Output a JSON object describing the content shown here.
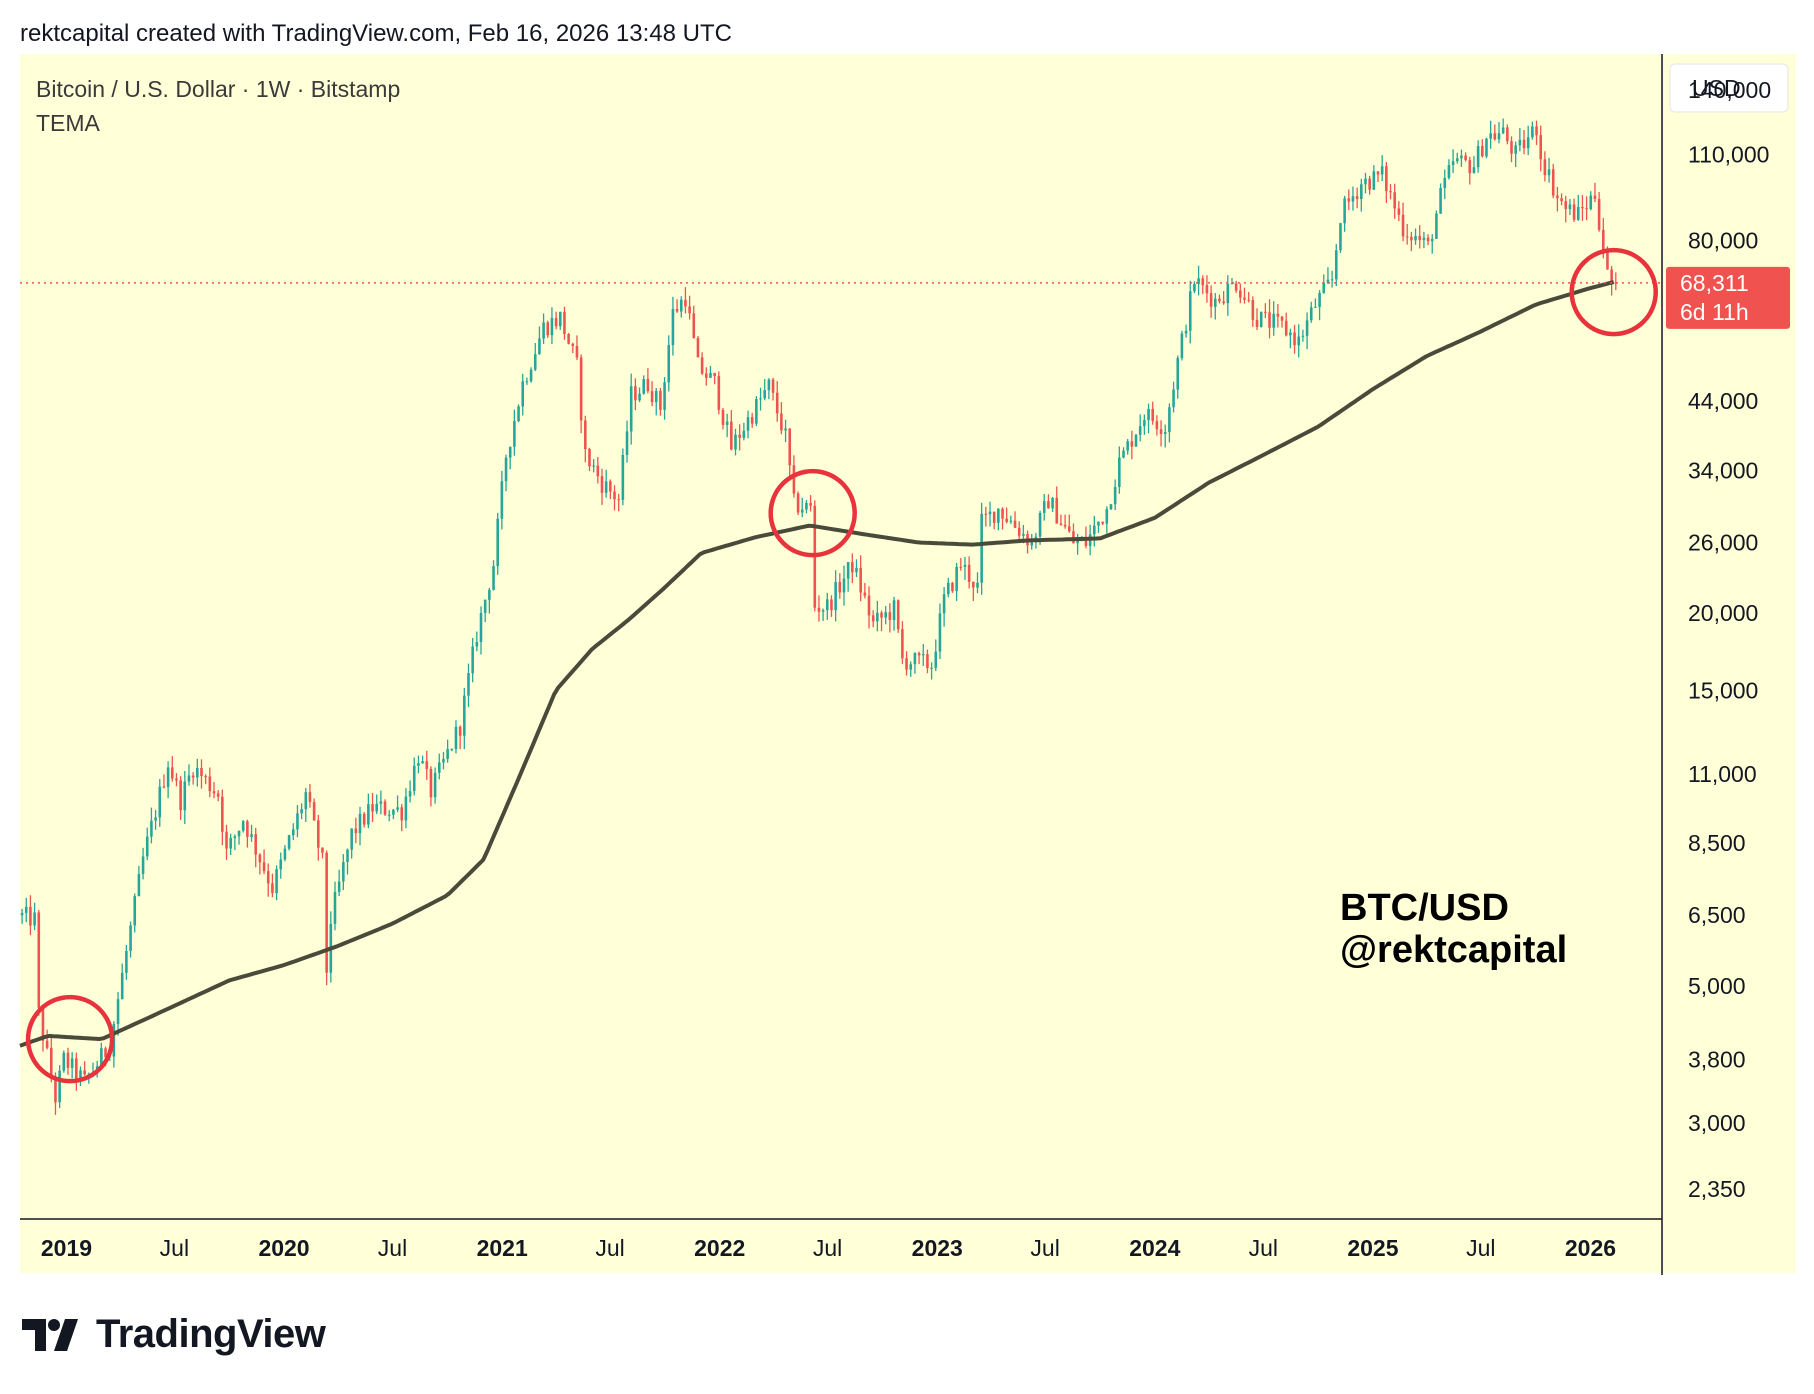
{
  "header": {
    "text": "rektcapital created with TradingView.com, Feb 16, 2026 13:48 UTC"
  },
  "legend": {
    "symbol": "Bitcoin / U.S. Dollar · 1W · Bitstamp",
    "indicator": "TEMA"
  },
  "currency": "USD",
  "price_tag": {
    "price": "68,311",
    "countdown": "6d 11h"
  },
  "watermark": {
    "line1": "BTC/USD",
    "line2": "@rektcapital"
  },
  "brand": {
    "name": "TradingView"
  },
  "colors": {
    "background": "#ffffd8",
    "up": "#26a69a",
    "down": "#ef5350",
    "tema": "#4a4a3a",
    "circle": "#e8323c",
    "price_line": "#ef5350",
    "price_tag": "#f0524f"
  },
  "chart_data": {
    "type": "candlestick",
    "timeframe": "1W",
    "y_scale": "log",
    "ylim": [
      2100,
      160000
    ],
    "y_ticks": [
      {
        "value": 140000,
        "label": "140,000"
      },
      {
        "value": 110000,
        "label": "110,000"
      },
      {
        "value": 80000,
        "label": "80,000"
      },
      {
        "value": 44000,
        "label": "44,000"
      },
      {
        "value": 34000,
        "label": "34,000"
      },
      {
        "value": 26000,
        "label": "26,000"
      },
      {
        "value": 20000,
        "label": "20,000"
      },
      {
        "value": 15000,
        "label": "15,000"
      },
      {
        "value": 11000,
        "label": "11,000"
      },
      {
        "value": 8500,
        "label": "8,500"
      },
      {
        "value": 6500,
        "label": "6,500"
      },
      {
        "value": 5000,
        "label": "5,000"
      },
      {
        "value": 3800,
        "label": "3,800"
      },
      {
        "value": 3000,
        "label": "3,000"
      },
      {
        "value": 2350,
        "label": "2,350"
      }
    ],
    "xlim": [
      "2018-10-15",
      "2026-05-01"
    ],
    "x_ticks": [
      {
        "date": "2019-01-01",
        "label": "2019",
        "bold": true
      },
      {
        "date": "2019-07-01",
        "label": "Jul",
        "bold": false
      },
      {
        "date": "2020-01-01",
        "label": "2020",
        "bold": true
      },
      {
        "date": "2020-07-01",
        "label": "Jul",
        "bold": false
      },
      {
        "date": "2021-01-01",
        "label": "2021",
        "bold": true
      },
      {
        "date": "2021-07-01",
        "label": "Jul",
        "bold": false
      },
      {
        "date": "2022-01-01",
        "label": "2022",
        "bold": true
      },
      {
        "date": "2022-07-01",
        "label": "Jul",
        "bold": false
      },
      {
        "date": "2023-01-01",
        "label": "2023",
        "bold": true
      },
      {
        "date": "2023-07-01",
        "label": "Jul",
        "bold": false
      },
      {
        "date": "2024-01-01",
        "label": "2024",
        "bold": true
      },
      {
        "date": "2024-07-01",
        "label": "Jul",
        "bold": false
      },
      {
        "date": "2025-01-01",
        "label": "2025",
        "bold": true
      },
      {
        "date": "2025-07-01",
        "label": "Jul",
        "bold": false
      },
      {
        "date": "2026-01-01",
        "label": "2026",
        "bold": true
      }
    ],
    "current_price": 68311,
    "price_anchors": [
      [
        "2018-10-15",
        6500
      ],
      [
        "2018-11-12",
        6400
      ],
      [
        "2018-11-19",
        4500
      ],
      [
        "2018-12-17",
        3300
      ],
      [
        "2018-12-31",
        3800
      ],
      [
        "2019-02-04",
        3500
      ],
      [
        "2019-03-18",
        4000
      ],
      [
        "2019-04-08",
        5200
      ],
      [
        "2019-05-13",
        8000
      ],
      [
        "2019-06-24",
        11500
      ],
      [
        "2019-07-15",
        10000
      ],
      [
        "2019-08-05",
        11300
      ],
      [
        "2019-09-16",
        10200
      ],
      [
        "2019-09-30",
        8200
      ],
      [
        "2019-10-28",
        9300
      ],
      [
        "2019-12-16",
        7200
      ],
      [
        "2020-02-10",
        10200
      ],
      [
        "2020-03-09",
        7900
      ],
      [
        "2020-03-16",
        5300
      ],
      [
        "2020-03-23",
        6400
      ],
      [
        "2020-04-27",
        8800
      ],
      [
        "2020-06-01",
        9700
      ],
      [
        "2020-07-20",
        9600
      ],
      [
        "2020-08-17",
        11800
      ],
      [
        "2020-09-07",
        10300
      ],
      [
        "2020-10-26",
        13200
      ],
      [
        "2020-11-23",
        18500
      ],
      [
        "2020-12-21",
        24000
      ],
      [
        "2021-01-11",
        36000
      ],
      [
        "2021-02-08",
        47000
      ],
      [
        "2021-03-15",
        58000
      ],
      [
        "2021-04-12",
        60000
      ],
      [
        "2021-05-10",
        50000
      ],
      [
        "2021-05-24",
        36000
      ],
      [
        "2021-06-21",
        32500
      ],
      [
        "2021-07-19",
        30500
      ],
      [
        "2021-08-09",
        45000
      ],
      [
        "2021-09-06",
        47000
      ],
      [
        "2021-09-27",
        43000
      ],
      [
        "2021-10-18",
        61000
      ],
      [
        "2021-11-08",
        65000
      ],
      [
        "2021-11-29",
        50000
      ],
      [
        "2021-12-27",
        47000
      ],
      [
        "2022-01-24",
        37000
      ],
      [
        "2022-02-14",
        40000
      ],
      [
        "2022-03-28",
        46500
      ],
      [
        "2022-04-25",
        38500
      ],
      [
        "2022-05-09",
        30000
      ],
      [
        "2022-06-06",
        29500
      ],
      [
        "2022-06-13",
        20500
      ],
      [
        "2022-07-04",
        20500
      ],
      [
        "2022-08-15",
        24000
      ],
      [
        "2022-09-19",
        19200
      ],
      [
        "2022-10-24",
        20300
      ],
      [
        "2022-11-07",
        16800
      ],
      [
        "2022-12-26",
        16500
      ],
      [
        "2023-01-16",
        21000
      ],
      [
        "2023-02-13",
        24000
      ],
      [
        "2023-03-13",
        22000
      ],
      [
        "2023-03-20",
        28000
      ],
      [
        "2023-04-17",
        29500
      ],
      [
        "2023-06-12",
        26000
      ],
      [
        "2023-07-10",
        30500
      ],
      [
        "2023-08-21",
        26000
      ],
      [
        "2023-09-11",
        26000
      ],
      [
        "2023-10-16",
        29500
      ],
      [
        "2023-11-06",
        35000
      ],
      [
        "2023-12-18",
        42000
      ],
      [
        "2024-01-22",
        40000
      ],
      [
        "2024-02-12",
        51000
      ],
      [
        "2024-03-11",
        69000
      ],
      [
        "2024-04-15",
        64000
      ],
      [
        "2024-05-20",
        68500
      ],
      [
        "2024-06-24",
        60000
      ],
      [
        "2024-08-05",
        58000
      ],
      [
        "2024-09-02",
        55000
      ],
      [
        "2024-09-30",
        63000
      ],
      [
        "2024-10-28",
        69000
      ],
      [
        "2024-11-11",
        88000
      ],
      [
        "2024-12-16",
        99000
      ],
      [
        "2025-01-20",
        102000
      ],
      [
        "2025-02-24",
        84000
      ],
      [
        "2025-04-07",
        78000
      ],
      [
        "2025-04-28",
        94000
      ],
      [
        "2025-05-19",
        107000
      ],
      [
        "2025-06-23",
        106000
      ],
      [
        "2025-07-14",
        118000
      ],
      [
        "2025-08-11",
        119000
      ],
      [
        "2025-09-01",
        110000
      ],
      [
        "2025-10-06",
        122000
      ],
      [
        "2025-10-13",
        110000
      ],
      [
        "2025-11-10",
        94000
      ],
      [
        "2025-11-24",
        90000
      ],
      [
        "2025-12-15",
        88000
      ],
      [
        "2026-01-12",
        95000
      ],
      [
        "2026-01-26",
        78000
      ],
      [
        "2026-02-02",
        70000
      ],
      [
        "2026-02-09",
        68311
      ]
    ],
    "tema_anchors": [
      [
        "2018-10-15",
        4000
      ],
      [
        "2018-12-01",
        4150
      ],
      [
        "2019-03-01",
        4100
      ],
      [
        "2019-06-01",
        4500
      ],
      [
        "2019-10-01",
        5100
      ],
      [
        "2020-01-01",
        5400
      ],
      [
        "2020-04-01",
        5800
      ],
      [
        "2020-07-01",
        6300
      ],
      [
        "2020-10-01",
        7000
      ],
      [
        "2020-12-01",
        8000
      ],
      [
        "2021-02-01",
        11000
      ],
      [
        "2021-04-01",
        15000
      ],
      [
        "2021-06-01",
        17500
      ],
      [
        "2021-08-01",
        19500
      ],
      [
        "2021-10-01",
        22000
      ],
      [
        "2021-12-01",
        25000
      ],
      [
        "2022-03-01",
        26500
      ],
      [
        "2022-06-01",
        27700
      ],
      [
        "2022-09-01",
        26800
      ],
      [
        "2022-12-01",
        26000
      ],
      [
        "2023-03-01",
        25800
      ],
      [
        "2023-06-01",
        26200
      ],
      [
        "2023-10-01",
        26400
      ],
      [
        "2024-01-01",
        28500
      ],
      [
        "2024-04-01",
        32500
      ],
      [
        "2024-07-01",
        36000
      ],
      [
        "2024-10-01",
        40000
      ],
      [
        "2025-01-01",
        46000
      ],
      [
        "2025-04-01",
        52000
      ],
      [
        "2025-07-01",
        57000
      ],
      [
        "2025-10-01",
        63000
      ],
      [
        "2026-01-01",
        67000
      ],
      [
        "2026-02-09",
        68500
      ]
    ],
    "highlight_circles": [
      {
        "date": "2019-01-07",
        "price": 4100
      },
      {
        "date": "2022-06-06",
        "price": 29000
      },
      {
        "date": "2026-02-09",
        "price": 66000
      }
    ]
  }
}
